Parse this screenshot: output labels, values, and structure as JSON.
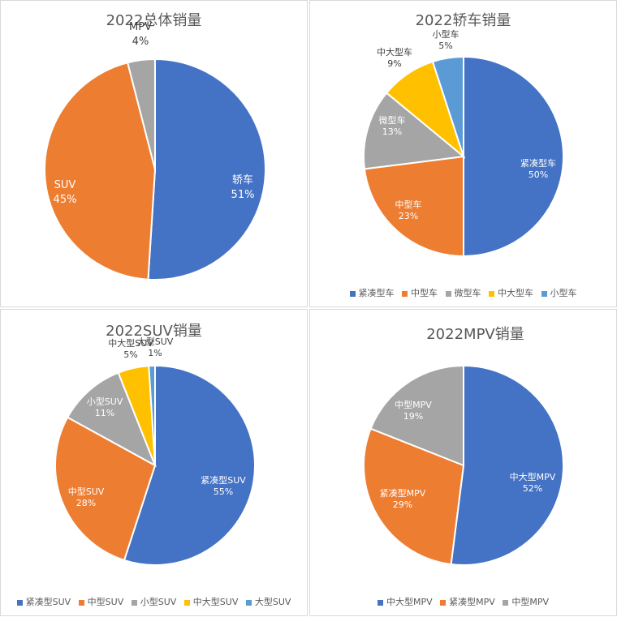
{
  "colors": {
    "blue": "#4472C4",
    "orange": "#ED7D31",
    "gray": "#A5A5A5",
    "yellow": "#FFC000",
    "lightblue": "#5B9BD5",
    "label_dark": "#404040",
    "label_light": "#ffffff"
  },
  "chart_data": [
    {
      "type": "pie",
      "title": "2022总体销量",
      "categories": [
        "轿车",
        "SUV",
        "MPV"
      ],
      "values": [
        51,
        45,
        4
      ],
      "labels": [
        "51%",
        "45%",
        "4%"
      ],
      "legend": null
    },
    {
      "type": "pie",
      "title": "2022轿车销量",
      "categories": [
        "紧凑型车",
        "中型车",
        "微型车",
        "中大型车",
        "小型车"
      ],
      "values": [
        50,
        23,
        13,
        9,
        5
      ],
      "labels": [
        "50%",
        "23%",
        "13%",
        "9%",
        "5%"
      ],
      "legend": "bottom"
    },
    {
      "type": "pie",
      "title": "2022SUV销量",
      "categories": [
        "紧凑型SUV",
        "中型SUV",
        "小型SUV",
        "中大型SUV",
        "大型SUV"
      ],
      "values": [
        55,
        28,
        11,
        5,
        1
      ],
      "labels": [
        "55%",
        "28%",
        "11%",
        "5%",
        "1%"
      ],
      "legend": "bottom"
    },
    {
      "type": "pie",
      "title": "2022MPV销量",
      "categories": [
        "中大型MPV",
        "紧凑型MPV",
        "中型MPV"
      ],
      "values": [
        52,
        29,
        19
      ],
      "labels": [
        "52%",
        "29%",
        "19%"
      ],
      "legend": "bottom"
    }
  ],
  "charts": {
    "total": {
      "title": "2022总体销量",
      "slices": [
        {
          "name": "轿车",
          "pct": "51%"
        },
        {
          "name": "SUV",
          "pct": "45%"
        },
        {
          "name": "MPV",
          "pct": "4%"
        }
      ]
    },
    "sedan": {
      "title": "2022轿车销量",
      "slices": [
        {
          "name": "紧凑型车",
          "pct": "50%"
        },
        {
          "name": "中型车",
          "pct": "23%"
        },
        {
          "name": "微型车",
          "pct": "13%"
        },
        {
          "name": "中大型车",
          "pct": "9%"
        },
        {
          "name": "小型车",
          "pct": "5%"
        }
      ],
      "legend": [
        "紧凑型车",
        "中型车",
        "微型车",
        "中大型车",
        "小型车"
      ]
    },
    "suv": {
      "title": "2022SUV销量",
      "slices": [
        {
          "name": "紧凑型SUV",
          "pct": "55%"
        },
        {
          "name": "中型SUV",
          "pct": "28%"
        },
        {
          "name": "小型SUV",
          "pct": "11%"
        },
        {
          "name": "中大型SUV",
          "pct": "5%"
        },
        {
          "name": "大型SUV",
          "pct": "1%"
        }
      ],
      "legend": [
        "紧凑型SUV",
        "中型SUV",
        "小型SUV",
        "中大型SUV",
        "大型SUV"
      ]
    },
    "mpv": {
      "title": "2022MPV销量",
      "slices": [
        {
          "name": "中大型MPV",
          "pct": "52%"
        },
        {
          "name": "紧凑型MPV",
          "pct": "29%"
        },
        {
          "name": "中型MPV",
          "pct": "19%"
        }
      ],
      "legend": [
        "中大型MPV",
        "紧凑型MPV",
        "中型MPV"
      ]
    }
  }
}
